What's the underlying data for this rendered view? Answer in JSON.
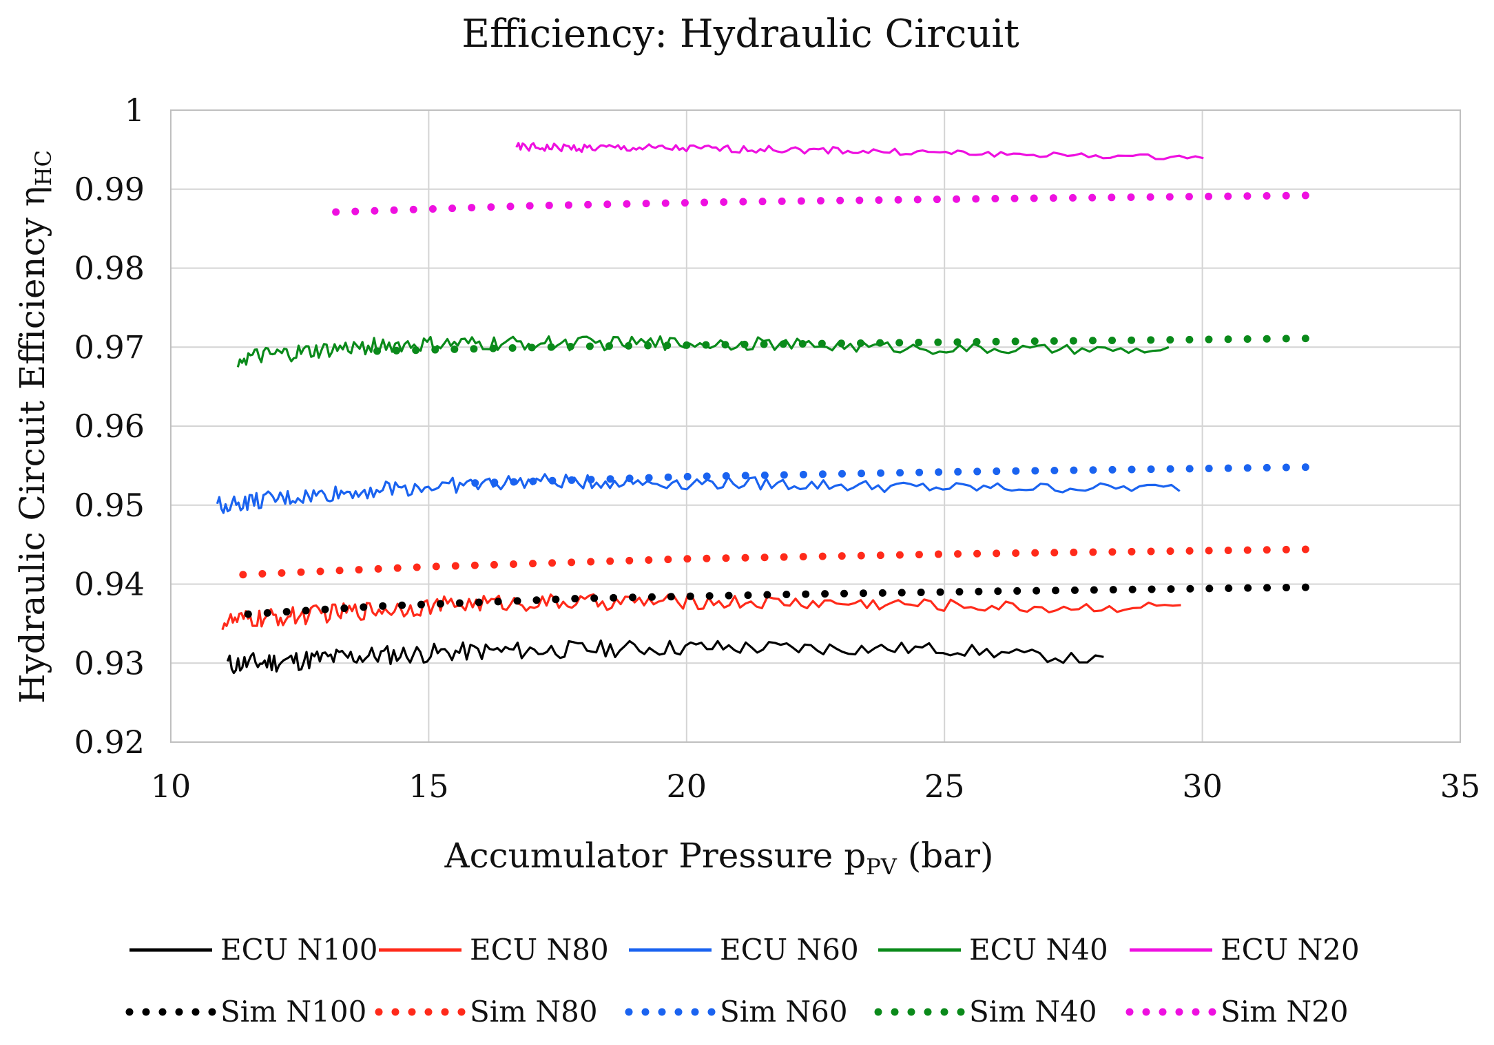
{
  "chart_data": {
    "type": "line",
    "title": "Efficiency: Hydraulic Circuit",
    "xlabel": {
      "main": "Accumulator Pressure p",
      "subscript": "PV",
      "suffix": " (bar)"
    },
    "ylabel": {
      "main": "Hydraulic Circuit Efficiency η",
      "subscript": "HC"
    },
    "xlim": [
      10,
      35
    ],
    "ylim": [
      0.92,
      1.0
    ],
    "xticks": [
      10,
      15,
      20,
      25,
      30,
      35
    ],
    "yticks": [
      0.92,
      0.93,
      0.94,
      0.95,
      0.96,
      0.97,
      0.98,
      0.99,
      1.0
    ],
    "ytick_labels": [
      "0.92",
      "0.93",
      "0.94",
      "0.95",
      "0.96",
      "0.97",
      "0.98",
      "0.99",
      "1"
    ],
    "xtick_labels": [
      "10",
      "15",
      "20",
      "25",
      "30",
      "35"
    ],
    "grid": true,
    "legend_position": "bottom",
    "series": [
      {
        "name": "ECU N100",
        "style": "solid",
        "color": "#000000",
        "x_start": 11.1,
        "x_end": 28.1,
        "y_points": [
          [
            11.1,
            0.9298
          ],
          [
            14,
            0.931
          ],
          [
            16,
            0.9315
          ],
          [
            20,
            0.932
          ],
          [
            25,
            0.9318
          ],
          [
            28.1,
            0.9303
          ]
        ],
        "noise": 0.001
      },
      {
        "name": "ECU N80",
        "style": "solid",
        "color": "#ff2a1a",
        "x_start": 11.0,
        "x_end": 29.7,
        "y_points": [
          [
            11.0,
            0.9352
          ],
          [
            14,
            0.9368
          ],
          [
            16,
            0.9376
          ],
          [
            20,
            0.9378
          ],
          [
            24,
            0.9375
          ],
          [
            27,
            0.937
          ],
          [
            29.7,
            0.9372
          ]
        ],
        "noise": 0.0009
      },
      {
        "name": "ECU N60",
        "style": "solid",
        "color": "#1a63f0",
        "x_start": 10.9,
        "x_end": 29.7,
        "y_points": [
          [
            10.9,
            0.95
          ],
          [
            14,
            0.952
          ],
          [
            17,
            0.953
          ],
          [
            21,
            0.9528
          ],
          [
            25,
            0.9522
          ],
          [
            29.7,
            0.9522
          ]
        ],
        "noise": 0.0008
      },
      {
        "name": "ECU N40",
        "style": "solid",
        "color": "#0a8a1a",
        "x_start": 11.3,
        "x_end": 29.5,
        "y_points": [
          [
            11.3,
            0.9685
          ],
          [
            14,
            0.9702
          ],
          [
            17,
            0.9705
          ],
          [
            21,
            0.9705
          ],
          [
            25,
            0.9698
          ],
          [
            29.5,
            0.9695
          ]
        ],
        "noise": 0.0008
      },
      {
        "name": "ECU N20",
        "style": "solid",
        "color": "#ee10e0",
        "x_start": 16.7,
        "x_end": 30.1,
        "y_points": [
          [
            16.7,
            0.9953
          ],
          [
            19,
            0.9952
          ],
          [
            22,
            0.995
          ],
          [
            25,
            0.9946
          ],
          [
            28,
            0.9942
          ],
          [
            30.1,
            0.994
          ]
        ],
        "noise": 0.0004
      },
      {
        "name": "Sim N100",
        "style": "dotted",
        "color": "#000000",
        "x_start": 11.5,
        "x_end": 32.0,
        "y_points": [
          [
            11.5,
            0.9362
          ],
          [
            14,
            0.9372
          ],
          [
            18,
            0.9382
          ],
          [
            22,
            0.9387
          ],
          [
            26,
            0.9391
          ],
          [
            32.0,
            0.9396
          ]
        ],
        "noise": 0
      },
      {
        "name": "Sim N80",
        "style": "dotted",
        "color": "#ff2a1a",
        "x_start": 11.4,
        "x_end": 32.0,
        "y_points": [
          [
            11.4,
            0.9412
          ],
          [
            15,
            0.9422
          ],
          [
            20,
            0.9432
          ],
          [
            25,
            0.9438
          ],
          [
            32.0,
            0.9444
          ]
        ],
        "noise": 0
      },
      {
        "name": "Sim N60",
        "style": "dotted",
        "color": "#1a63f0",
        "x_start": 15.9,
        "x_end": 32.0,
        "y_points": [
          [
            15.9,
            0.9528
          ],
          [
            20,
            0.9536
          ],
          [
            25,
            0.9542
          ],
          [
            32.0,
            0.9548
          ]
        ],
        "noise": 0
      },
      {
        "name": "Sim N40",
        "style": "dotted",
        "color": "#0a8a1a",
        "x_start": 14.0,
        "x_end": 32.0,
        "y_points": [
          [
            14.0,
            0.9695
          ],
          [
            18,
            0.9701
          ],
          [
            22,
            0.9704
          ],
          [
            26,
            0.9707
          ],
          [
            32.0,
            0.9711
          ]
        ],
        "noise": 0
      },
      {
        "name": "Sim N20",
        "style": "dotted",
        "color": "#ee10e0",
        "x_start": 13.2,
        "x_end": 32.0,
        "y_points": [
          [
            13.2,
            0.9871
          ],
          [
            17,
            0.9879
          ],
          [
            21,
            0.9884
          ],
          [
            26,
            0.9888
          ],
          [
            32.0,
            0.9892
          ]
        ],
        "noise": 0
      }
    ]
  }
}
